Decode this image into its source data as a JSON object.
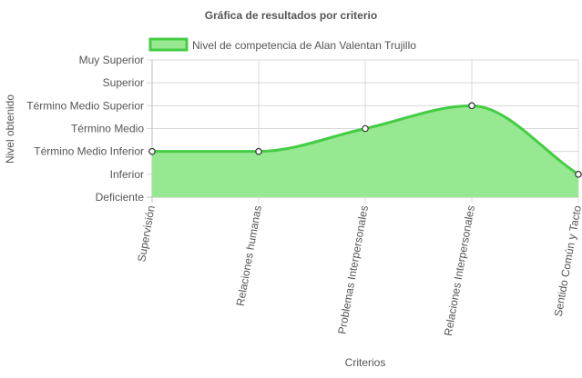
{
  "chart_data": {
    "type": "area",
    "title": "Gráfica de resultados por criterio",
    "xlabel": "Criterios",
    "ylabel": "Nivel obtenido",
    "y_levels": [
      "Deficiente",
      "Inferior",
      "Término Medio Inferior",
      "Término Medio",
      "Término Medio Superior",
      "Superior",
      "Muy Superior"
    ],
    "ylim": [
      0,
      6
    ],
    "categories": [
      "Supervisión",
      "Relaciones humanas",
      "Problemas Interpersonales",
      "Relaciones Interpersonales",
      "Sentido Común y Tacto"
    ],
    "series": [
      {
        "name": "Nivel de competencia de Alan Valentan  Trujillo",
        "values": [
          2,
          2,
          3,
          4,
          1
        ]
      }
    ],
    "grid": true,
    "legend_position": "top",
    "colors": {
      "fill": "#97e991",
      "line": "#44cc44",
      "point_fill": "#ffffff",
      "point_stroke": "#333333",
      "grid": "#d8d8d8"
    }
  }
}
